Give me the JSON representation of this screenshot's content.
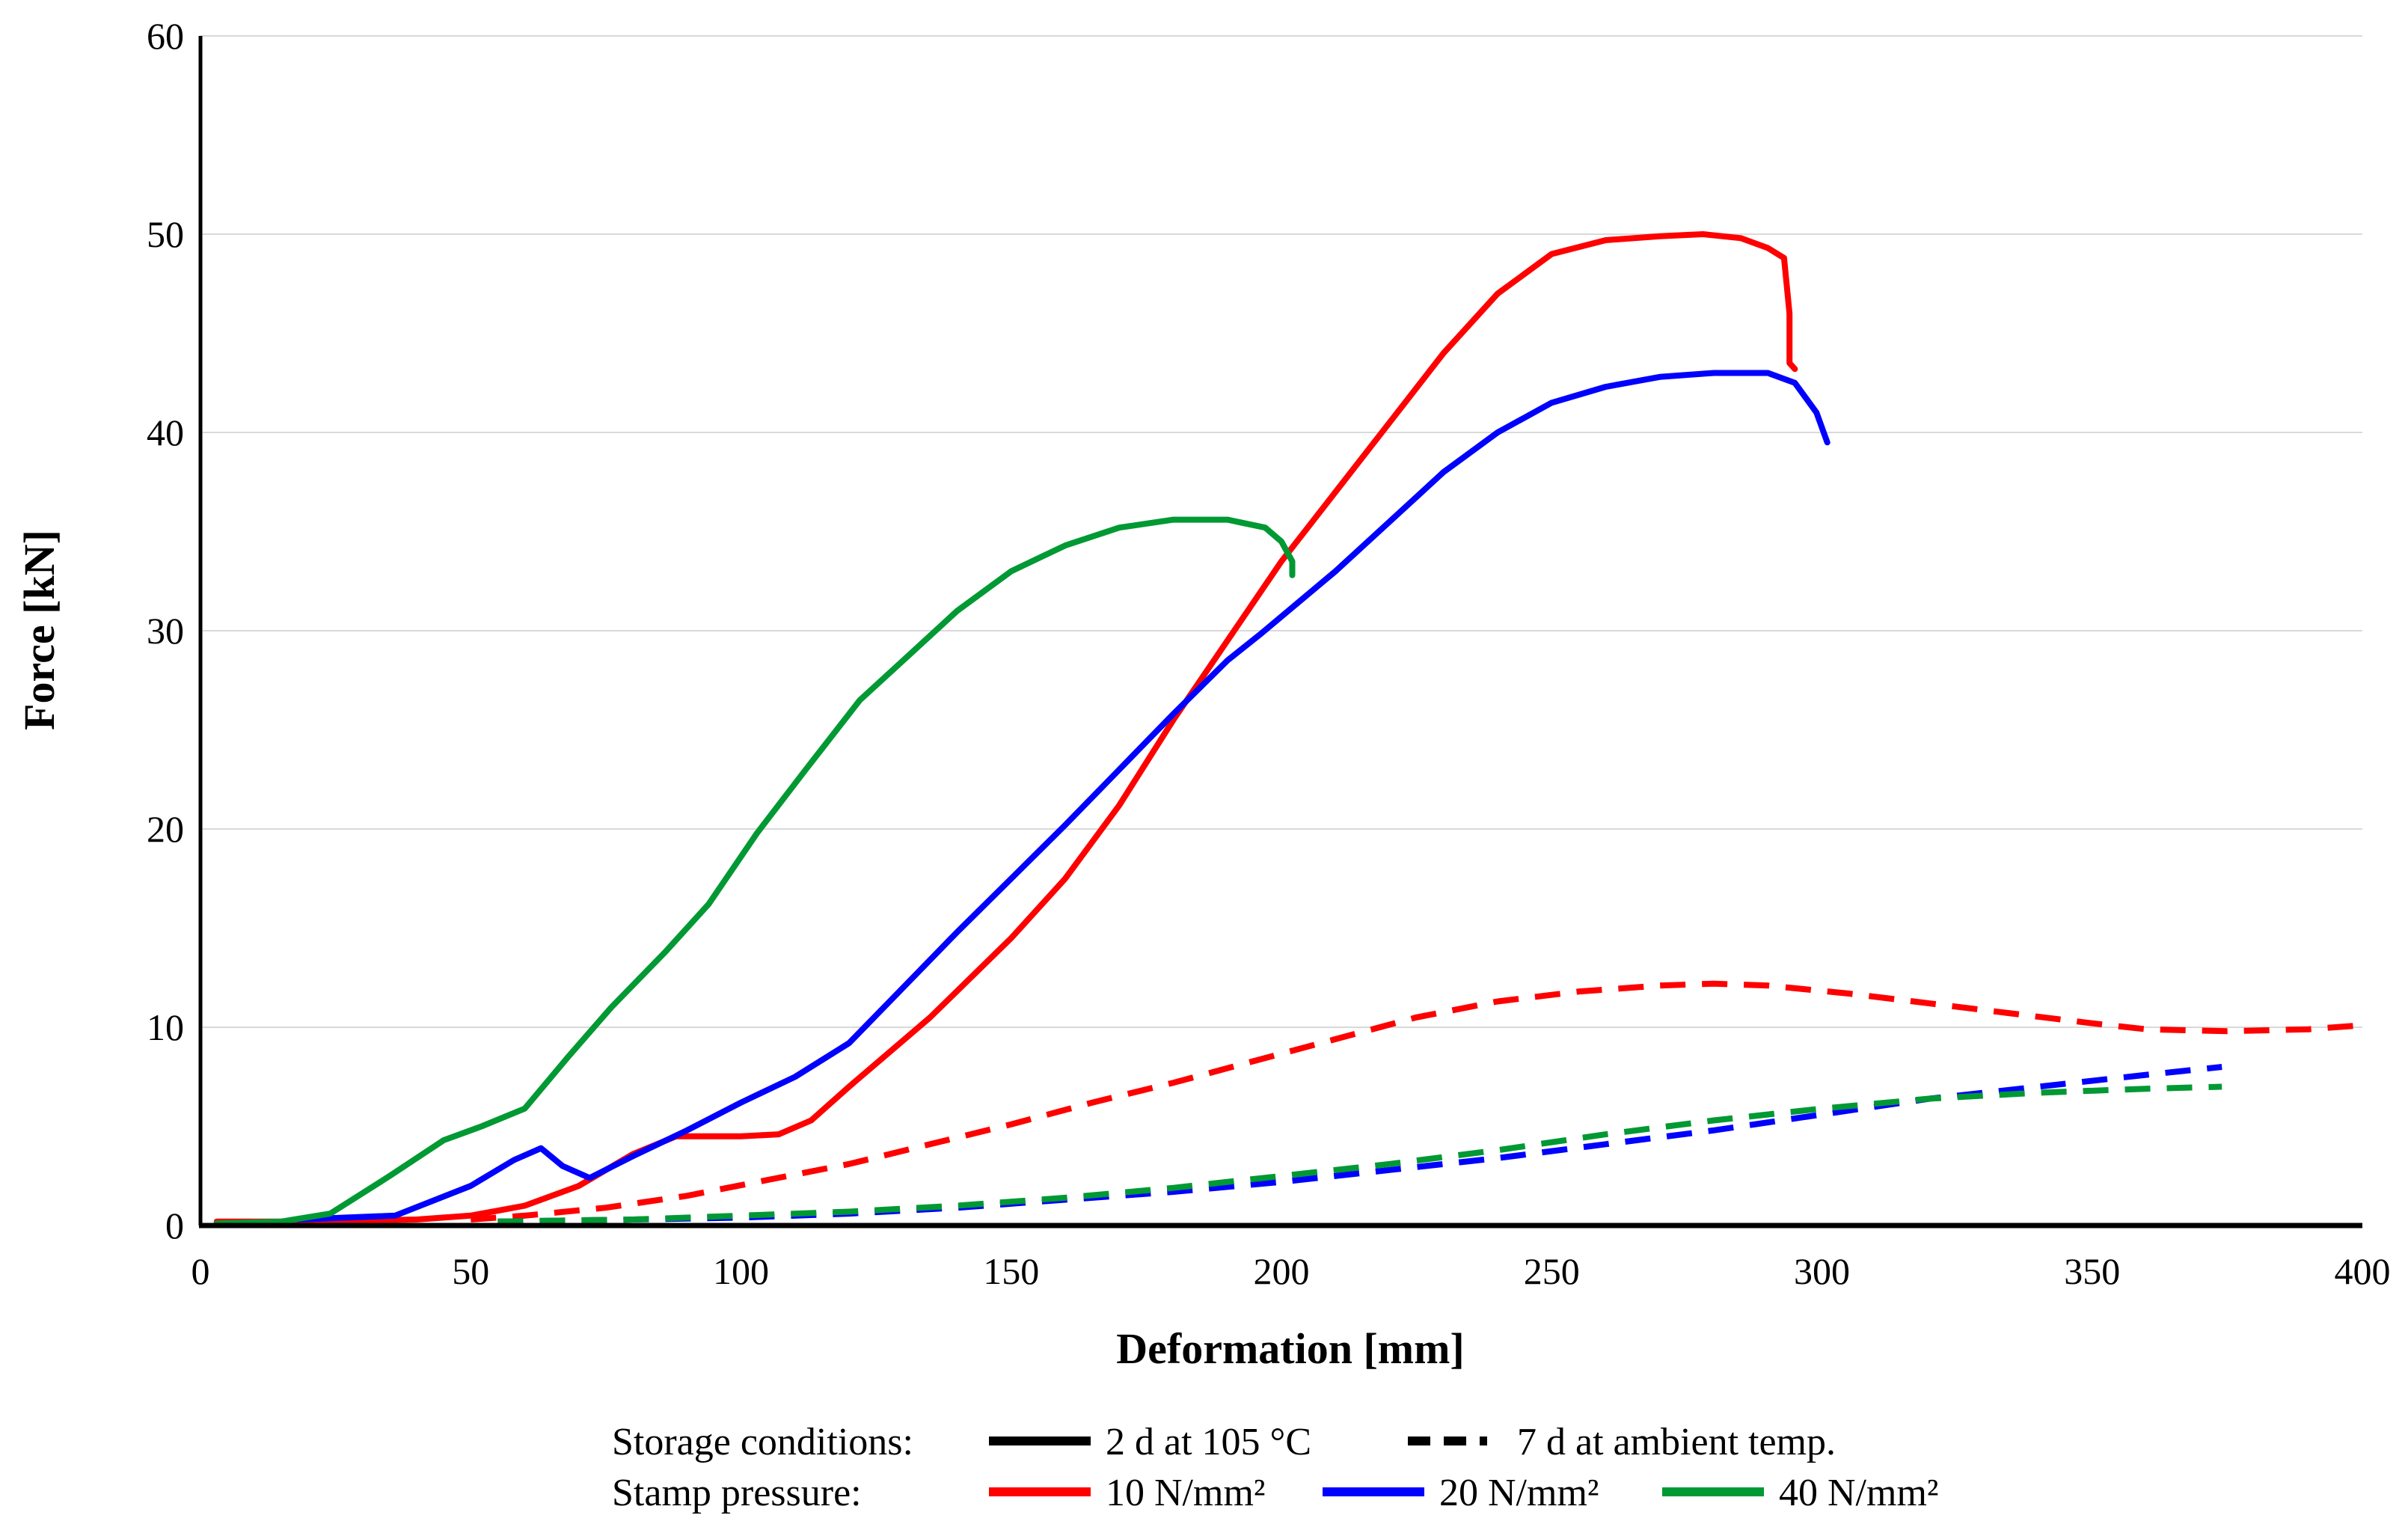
{
  "chart_data": {
    "type": "line",
    "title": "",
    "xlabel": "Deformation [mm]",
    "ylabel": "Force [kN]",
    "xlim": [
      0,
      400
    ],
    "ylim": [
      0,
      60
    ],
    "x_ticks": [
      "0",
      "50",
      "100",
      "150",
      "200",
      "250",
      "300",
      "350",
      "400"
    ],
    "y_ticks": [
      "0",
      "10",
      "20",
      "30",
      "40",
      "50",
      "60"
    ],
    "grid": "horizontal",
    "legend": {
      "placement": "bottom",
      "storage_label": "Storage conditions:",
      "pressure_label": "Stamp pressure:",
      "storage_items": [
        {
          "label": "2 d at 105 °C",
          "style": "solid"
        },
        {
          "label": "7 d at ambient temp.",
          "style": "dashed"
        }
      ],
      "pressure_items": [
        {
          "label": "10 N/mm²",
          "color": "#ff0000"
        },
        {
          "label": "20 N/mm²",
          "color": "#0000ff"
        },
        {
          "label": "40 N/mm²",
          "color": "#009933"
        }
      ]
    },
    "series": [
      {
        "name": "10 N/mm² – 2 d at 105 °C",
        "color": "#ff0000",
        "style": "solid",
        "points": [
          [
            3,
            0.2
          ],
          [
            20,
            0.2
          ],
          [
            40,
            0.3
          ],
          [
            50,
            0.5
          ],
          [
            60,
            1.0
          ],
          [
            70,
            2.0
          ],
          [
            80,
            3.6
          ],
          [
            88,
            4.5
          ],
          [
            100,
            4.5
          ],
          [
            107,
            4.6
          ],
          [
            113,
            5.3
          ],
          [
            120,
            7.0
          ],
          [
            135,
            10.5
          ],
          [
            150,
            14.5
          ],
          [
            160,
            17.5
          ],
          [
            170,
            21.2
          ],
          [
            180,
            25.5
          ],
          [
            190,
            29.5
          ],
          [
            200,
            33.5
          ],
          [
            210,
            37.0
          ],
          [
            220,
            40.5
          ],
          [
            230,
            44.0
          ],
          [
            240,
            47.0
          ],
          [
            250,
            49.0
          ],
          [
            260,
            49.7
          ],
          [
            270,
            49.9
          ],
          [
            278,
            50.0
          ],
          [
            285,
            49.8
          ],
          [
            290,
            49.3
          ],
          [
            293,
            48.8
          ],
          [
            294,
            46.0
          ],
          [
            294,
            43.5
          ],
          [
            295,
            43.2
          ]
        ]
      },
      {
        "name": "20 N/mm² – 2 d at 105 °C",
        "color": "#0000ff",
        "style": "solid",
        "points": [
          [
            18,
            0.3
          ],
          [
            36,
            0.5
          ],
          [
            50,
            2.0
          ],
          [
            58,
            3.3
          ],
          [
            63,
            3.9
          ],
          [
            67,
            3.0
          ],
          [
            72,
            2.4
          ],
          [
            80,
            3.5
          ],
          [
            90,
            4.8
          ],
          [
            100,
            6.2
          ],
          [
            110,
            7.5
          ],
          [
            120,
            9.2
          ],
          [
            130,
            12.0
          ],
          [
            140,
            14.8
          ],
          [
            150,
            17.5
          ],
          [
            160,
            20.2
          ],
          [
            170,
            23.0
          ],
          [
            180,
            25.8
          ],
          [
            190,
            28.5
          ],
          [
            196,
            29.8
          ],
          [
            210,
            33.0
          ],
          [
            220,
            35.5
          ],
          [
            230,
            38.0
          ],
          [
            240,
            40.0
          ],
          [
            250,
            41.5
          ],
          [
            260,
            42.3
          ],
          [
            270,
            42.8
          ],
          [
            280,
            43.0
          ],
          [
            290,
            43.0
          ],
          [
            295,
            42.5
          ],
          [
            299,
            41.0
          ],
          [
            301,
            39.5
          ]
        ]
      },
      {
        "name": "40 N/mm² – 2 d at 105 °C",
        "color": "#009933",
        "style": "solid",
        "points": [
          [
            3,
            0.1
          ],
          [
            15,
            0.2
          ],
          [
            24,
            0.6
          ],
          [
            35,
            2.5
          ],
          [
            45,
            4.3
          ],
          [
            52,
            5.0
          ],
          [
            60,
            5.9
          ],
          [
            68,
            8.5
          ],
          [
            76,
            11.0
          ],
          [
            86,
            13.8
          ],
          [
            94,
            16.2
          ],
          [
            103,
            19.8
          ],
          [
            112,
            23.0
          ],
          [
            122,
            26.5
          ],
          [
            130,
            28.5
          ],
          [
            140,
            31.0
          ],
          [
            150,
            33.0
          ],
          [
            160,
            34.3
          ],
          [
            170,
            35.2
          ],
          [
            180,
            35.6
          ],
          [
            190,
            35.6
          ],
          [
            197,
            35.2
          ],
          [
            200,
            34.5
          ],
          [
            202,
            33.5
          ],
          [
            202,
            32.8
          ]
        ]
      },
      {
        "name": "10 N/mm² – 7 d at ambient temp.",
        "color": "#ff0000",
        "style": "dashed",
        "points": [
          [
            50,
            0.3
          ],
          [
            60,
            0.5
          ],
          [
            75,
            0.9
          ],
          [
            90,
            1.5
          ],
          [
            105,
            2.3
          ],
          [
            120,
            3.1
          ],
          [
            135,
            4.1
          ],
          [
            150,
            5.1
          ],
          [
            165,
            6.2
          ],
          [
            180,
            7.2
          ],
          [
            195,
            8.3
          ],
          [
            210,
            9.4
          ],
          [
            225,
            10.5
          ],
          [
            240,
            11.3
          ],
          [
            255,
            11.8
          ],
          [
            270,
            12.1
          ],
          [
            280,
            12.2
          ],
          [
            290,
            12.1
          ],
          [
            305,
            11.7
          ],
          [
            320,
            11.2
          ],
          [
            335,
            10.7
          ],
          [
            350,
            10.2
          ],
          [
            360,
            9.9
          ],
          [
            375,
            9.8
          ],
          [
            390,
            9.9
          ],
          [
            400,
            10.1
          ]
        ]
      },
      {
        "name": "20 N/mm² – 7 d at ambient temp.",
        "color": "#0000ff",
        "style": "dashed",
        "points": [
          [
            55,
            0.2
          ],
          [
            80,
            0.3
          ],
          [
            100,
            0.4
          ],
          [
            120,
            0.6
          ],
          [
            140,
            0.9
          ],
          [
            160,
            1.3
          ],
          [
            180,
            1.7
          ],
          [
            200,
            2.2
          ],
          [
            220,
            2.8
          ],
          [
            240,
            3.4
          ],
          [
            260,
            4.1
          ],
          [
            280,
            4.8
          ],
          [
            300,
            5.6
          ],
          [
            320,
            6.4
          ],
          [
            340,
            7.0
          ],
          [
            360,
            7.6
          ],
          [
            374,
            8.0
          ]
        ]
      },
      {
        "name": "40 N/mm² – 7 d at ambient temp.",
        "color": "#009933",
        "style": "dashed",
        "points": [
          [
            55,
            0.2
          ],
          [
            80,
            0.3
          ],
          [
            100,
            0.5
          ],
          [
            120,
            0.7
          ],
          [
            140,
            1.0
          ],
          [
            160,
            1.4
          ],
          [
            180,
            1.9
          ],
          [
            200,
            2.5
          ],
          [
            220,
            3.1
          ],
          [
            240,
            3.8
          ],
          [
            260,
            4.6
          ],
          [
            280,
            5.3
          ],
          [
            300,
            5.9
          ],
          [
            320,
            6.4
          ],
          [
            340,
            6.7
          ],
          [
            360,
            6.9
          ],
          [
            374,
            7.0
          ]
        ]
      }
    ]
  }
}
